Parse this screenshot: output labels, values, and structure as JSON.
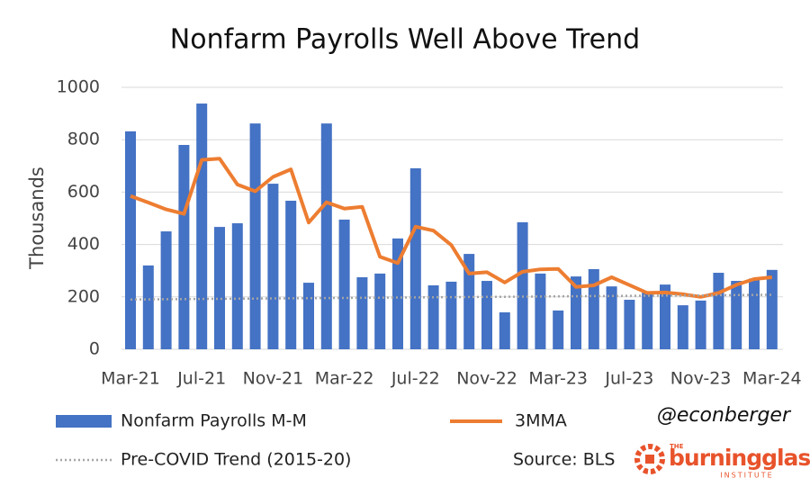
{
  "chart_data": {
    "type": "bar",
    "title": "Nonfarm Payrolls Well Above Trend",
    "y_label": "Thousands",
    "categories": [
      "Mar-21",
      null,
      null,
      null,
      "Jul-21",
      null,
      null,
      null,
      "Nov-21",
      null,
      null,
      null,
      "Mar-22",
      null,
      null,
      null,
      "Jul-22",
      null,
      null,
      null,
      "Nov-22",
      null,
      null,
      null,
      "Mar-23",
      null,
      null,
      null,
      "Jul-23",
      null,
      null,
      null,
      "Nov-23",
      null,
      null,
      null,
      "Mar-24"
    ],
    "series": [
      {
        "name": "Nonfarm Payrolls M-M",
        "kind": "bar",
        "color": "#4472c4",
        "values": [
          832,
          320,
          450,
          780,
          938,
          467,
          481,
          862,
          632,
          567,
          254,
          862,
          495,
          275,
          289,
          423,
          691,
          244,
          258,
          364,
          261,
          141,
          485,
          289,
          148,
          278,
          306,
          240,
          189,
          216,
          247,
          168,
          186,
          292,
          261,
          270,
          303
        ]
      },
      {
        "name": "3MMA",
        "kind": "line",
        "color": "#ed7d31",
        "values": [
          585,
          560,
          534,
          517,
          723,
          728,
          629,
          603,
          658,
          687,
          484,
          561,
          537,
          544,
          353,
          329,
          468,
          453,
          398,
          289,
          294,
          255,
          296,
          305,
          307,
          238,
          244,
          275,
          245,
          215,
          217,
          210,
          200,
          215,
          246,
          268,
          275
        ]
      },
      {
        "name": "Pre-COVID Trend (2015-20)",
        "kind": "dotted",
        "color": "#a5a5a5",
        "values": [
          190,
          190.5,
          191,
          191.5,
          192,
          192.5,
          193,
          193.5,
          194,
          194.5,
          195,
          195.5,
          196,
          196.5,
          197,
          197.5,
          198,
          198.5,
          199,
          199.5,
          200,
          200.5,
          201,
          201.5,
          202,
          202.5,
          203,
          203.5,
          204,
          204.5,
          205,
          205.5,
          206,
          206.5,
          207,
          207.5,
          208
        ]
      }
    ],
    "ylim": [
      0,
      1000
    ],
    "yticks": [
      0,
      200,
      400,
      600,
      800,
      1000
    ],
    "grid": true,
    "legend": "bottom",
    "handle": "@econberger",
    "source": "Source: BLS",
    "logo": {
      "top": "THE",
      "name": "burningglass",
      "bottom": "INSTITUTE"
    }
  }
}
